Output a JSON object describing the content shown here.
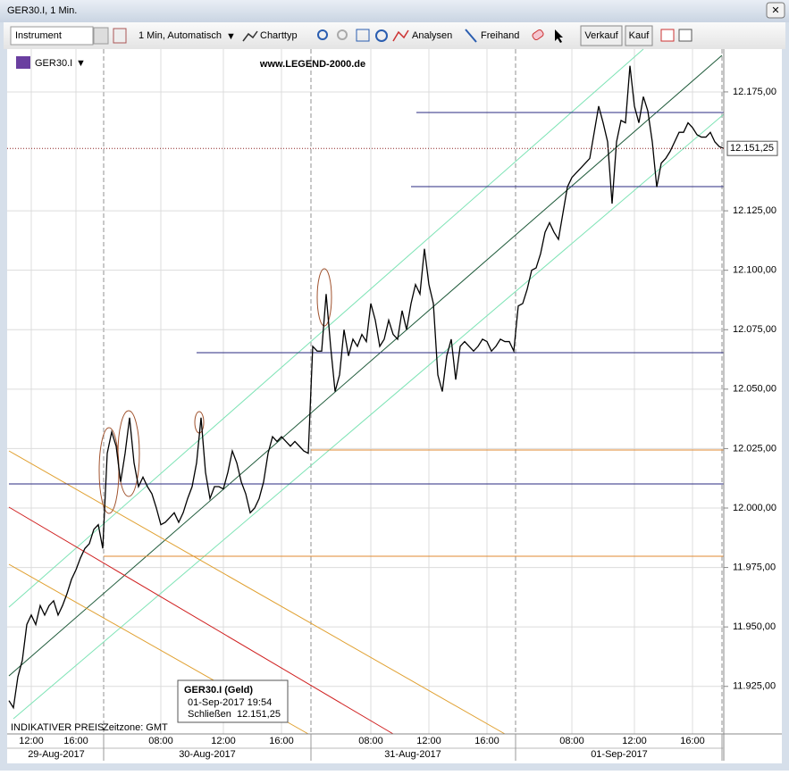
{
  "ui": {
    "window_title": "GER30.I, 1 Min.",
    "instrument": "Instrument",
    "period": "1 Min,  Automatisch",
    "chart_type": "Charttyp",
    "analyses": "Analysen",
    "freehand": "Freihand",
    "sell": "Verkauf",
    "buy": "Kauf",
    "symbol": "GER30.I",
    "watermark": "www.LEGEND-2000.de",
    "indicative": "INDIKATIVER PREIS",
    "timezone": "Zeitzone: GMT",
    "tooltip": {
      "title": "GER30.I (Geld)",
      "time": "01-Sep-2017 19:54",
      "close_label": "Schließen",
      "close_value": "12.151,25"
    }
  },
  "chart_data": {
    "type": "line",
    "color": "#000000",
    "categories": [
      null,
      null,
      null,
      null,
      null,
      "12:00",
      null,
      null,
      null,
      null,
      null,
      null,
      null,
      null,
      null,
      "16:00",
      null,
      null,
      null,
      null,
      null,
      null,
      null,
      null,
      null,
      null,
      null,
      null,
      null,
      null,
      null,
      null,
      null,
      null,
      "08:00",
      null,
      null,
      null,
      null,
      null,
      null,
      null,
      null,
      null,
      null,
      null,
      null,
      null,
      "12:00",
      null,
      null,
      null,
      null,
      null,
      null,
      null,
      null,
      null,
      null,
      null,
      null,
      "16:00",
      null,
      null,
      null,
      null,
      null,
      null,
      null,
      null,
      null,
      null,
      null,
      null,
      null,
      null,
      null,
      null,
      null,
      null,
      null,
      "08:00",
      null,
      null,
      null,
      null,
      null,
      null,
      null,
      null,
      null,
      null,
      null,
      null,
      "12:00",
      null,
      null,
      null,
      null,
      null,
      null,
      null,
      null,
      null,
      null,
      null,
      null,
      "16:00",
      null,
      null,
      null,
      null,
      null,
      null,
      null,
      null,
      null,
      null,
      null,
      null,
      null,
      null,
      null,
      null,
      null,
      null,
      "08:00",
      null,
      null,
      null,
      null,
      null,
      null,
      null,
      null,
      null,
      null,
      null,
      null,
      null,
      "12:00",
      null,
      null,
      null,
      null,
      null,
      null,
      null,
      null,
      null,
      null,
      null,
      null,
      "16:00",
      null,
      null,
      null,
      null,
      null,
      null,
      null
    ],
    "values": [
      11919,
      11916,
      11929,
      11936,
      11951,
      11955,
      11951,
      11959,
      11955,
      11959,
      11961,
      11955,
      11959,
      11964,
      11970,
      11974,
      11979,
      11983,
      11985,
      11991,
      11993,
      11983,
      12023,
      12032,
      12026,
      12011,
      12023,
      12038,
      12019,
      12009,
      12013,
      12009,
      12006,
      12000,
      11993,
      11994,
      11996,
      11998,
      11994,
      11998,
      12004,
      12009,
      12019,
      12038,
      12015,
      12004,
      12009,
      12009,
      12008,
      12015,
      12024,
      12019,
      12011,
      12006,
      11998,
      12000,
      12004,
      12011,
      12023,
      12030,
      12028,
      12030,
      12028,
      12026,
      12028,
      12026,
      12024,
      12023,
      12068,
      12066,
      12066,
      12090,
      12068,
      12049,
      12056,
      12075,
      12064,
      12071,
      12068,
      12073,
      12070,
      12086,
      12079,
      12068,
      12071,
      12079,
      12073,
      12071,
      12083,
      12075,
      12086,
      12094,
      12090,
      12109,
      12094,
      12086,
      12056,
      12049,
      12064,
      12071,
      12054,
      12068,
      12070,
      12068,
      12066,
      12068,
      12071,
      12070,
      12066,
      12068,
      12071,
      12070,
      12070,
      12066,
      12085,
      12086,
      12092,
      12100,
      12101,
      12107,
      12116,
      12120,
      12116,
      12113,
      12124,
      12135,
      12139,
      12141,
      12143,
      12145,
      12147,
      12158,
      12169,
      12162,
      12154,
      12128,
      12154,
      12163,
      12162,
      12186,
      12169,
      12162,
      12173,
      12167,
      12154,
      12135,
      12145,
      12147,
      12150,
      12154,
      12158,
      12158,
      12162,
      12160,
      12157,
      12156,
      12156,
      12158,
      12154,
      12152,
      12151.25
    ],
    "dates": [
      "29-Aug-2017",
      "30-Aug-2017",
      "31-Aug-2017",
      "01-Sep-2017"
    ],
    "ylim": [
      11905,
      12193
    ],
    "yticks": [
      {
        "value": 12175,
        "label": "12.175,00"
      },
      {
        "value": 12125,
        "label": "12.125,00"
      },
      {
        "value": 12100,
        "label": "12.100,00"
      },
      {
        "value": 12075,
        "label": "12.075,00"
      },
      {
        "value": 12050,
        "label": "12.050,00"
      },
      {
        "value": 12025,
        "label": "12.025,00"
      },
      {
        "value": 12000,
        "label": "12.000,00"
      },
      {
        "value": 11975,
        "label": "11.975,00"
      },
      {
        "value": 11950,
        "label": "11.950,00"
      },
      {
        "value": 11925,
        "label": "11.925,00"
      }
    ],
    "last_price": {
      "value": 12151.25,
      "label": "12.151,25"
    },
    "grid": true
  }
}
